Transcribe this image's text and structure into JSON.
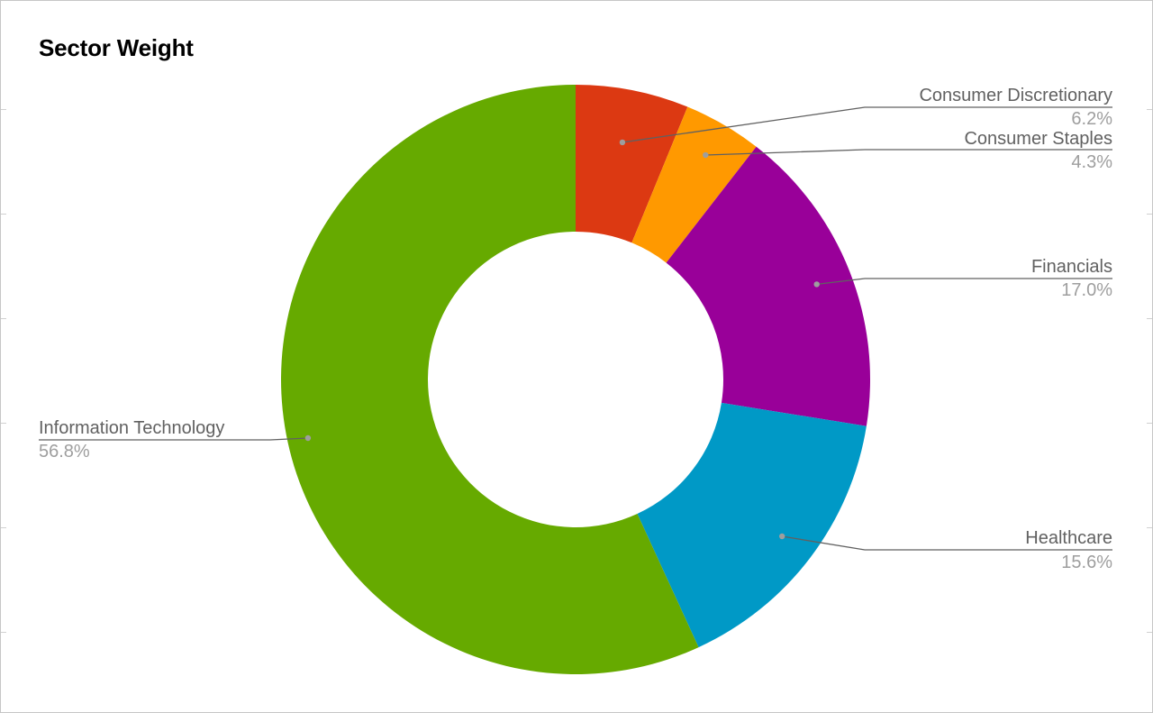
{
  "chart_data": {
    "type": "pie",
    "donut": true,
    "title": "Sector Weight",
    "start_angle_deg": 0,
    "direction": "clockwise",
    "slices": [
      {
        "label": "Consumer Discretionary",
        "value": 6.2,
        "value_label": "6.2%",
        "color": "#dc3912"
      },
      {
        "label": "Consumer Staples",
        "value": 4.3,
        "value_label": "4.3%",
        "color": "#ff9900"
      },
      {
        "label": "Financials",
        "value": 17.0,
        "value_label": "17.0%",
        "color": "#990099"
      },
      {
        "label": "Healthcare",
        "value": 15.6,
        "value_label": "15.6%",
        "color": "#0099c6"
      },
      {
        "label": "Information Technology",
        "value": 56.8,
        "value_label": "56.8%",
        "color": "#66aa00"
      }
    ],
    "legend": "labeled leader lines"
  }
}
